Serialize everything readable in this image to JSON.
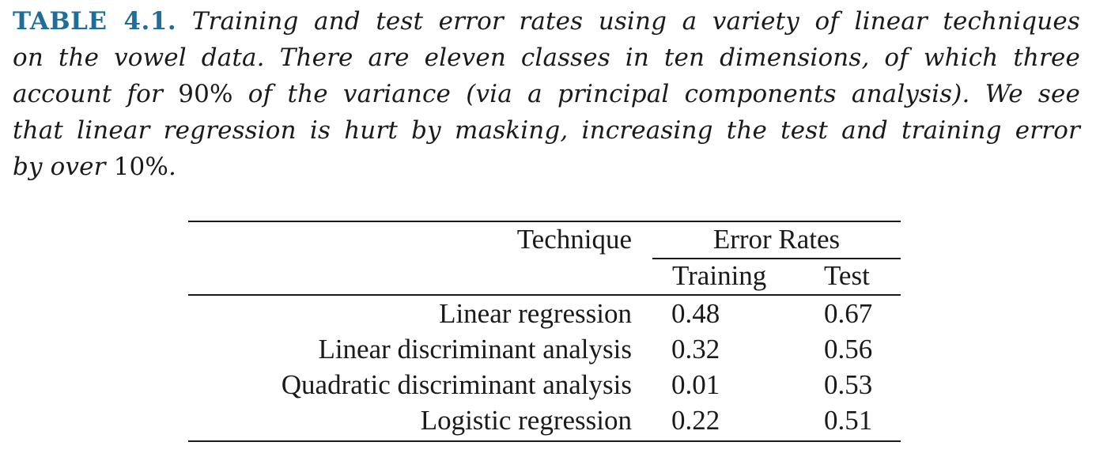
{
  "caption": {
    "label": "TABLE 4.1.",
    "line1": "Training and test error rates using a variety of linear techniques",
    "line2": "on the vowel data. There are eleven classes in ten dimensions, of which three",
    "line3a": "account for ",
    "line3num": "90%",
    "line3b": " of the variance (via a principal components analysis). We see",
    "line4": "that linear regression is hurt by masking, increasing the test and training error",
    "line5a": "by over ",
    "line5num": "10%",
    "line5b": "."
  },
  "table": {
    "header": {
      "technique": "Technique",
      "error_rates": "Error Rates",
      "training": "Training",
      "test": "Test"
    },
    "rows": [
      {
        "technique": "Linear regression",
        "training": "0.48",
        "test": "0.67"
      },
      {
        "technique": "Linear discriminant analysis",
        "training": "0.32",
        "test": "0.56"
      },
      {
        "technique": "Quadratic discriminant analysis",
        "training": "0.01",
        "test": "0.53"
      },
      {
        "technique": "Logistic regression",
        "training": "0.22",
        "test": "0.51"
      }
    ]
  },
  "colors": {
    "label": "#1f6d99",
    "text": "#1a1a1a"
  }
}
